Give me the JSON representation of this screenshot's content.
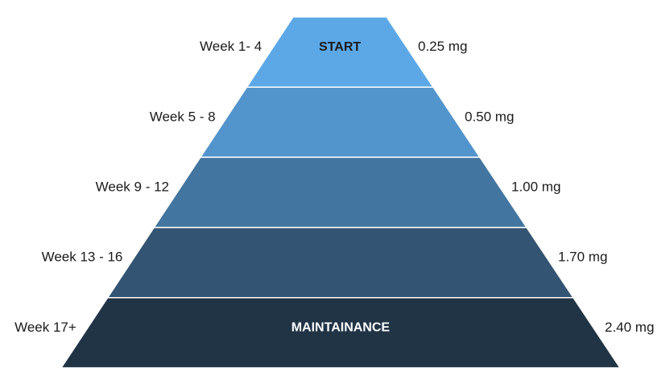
{
  "tiers": [
    {
      "week": "Week 1- 4",
      "dose": "0.25 mg",
      "title": "START",
      "color": "#5ca8e6",
      "title_color": "#1a1a1a"
    },
    {
      "week": "Week 5 - 8",
      "dose": "0.50 mg",
      "title": "",
      "color": "#5294cc",
      "title_color": "#ffffff"
    },
    {
      "week": "Week 9 - 12",
      "dose": "1.00 mg",
      "title": "",
      "color": "#42759f",
      "title_color": "#ffffff"
    },
    {
      "week": "Week 13 - 16",
      "dose": "1.70 mg",
      "title": "",
      "color": "#335472",
      "title_color": "#ffffff"
    },
    {
      "week": "Week 17+",
      "dose": "2.40 mg",
      "title": "MAINTAINANCE",
      "color": "#213446",
      "title_color": "#ffffff"
    }
  ]
}
